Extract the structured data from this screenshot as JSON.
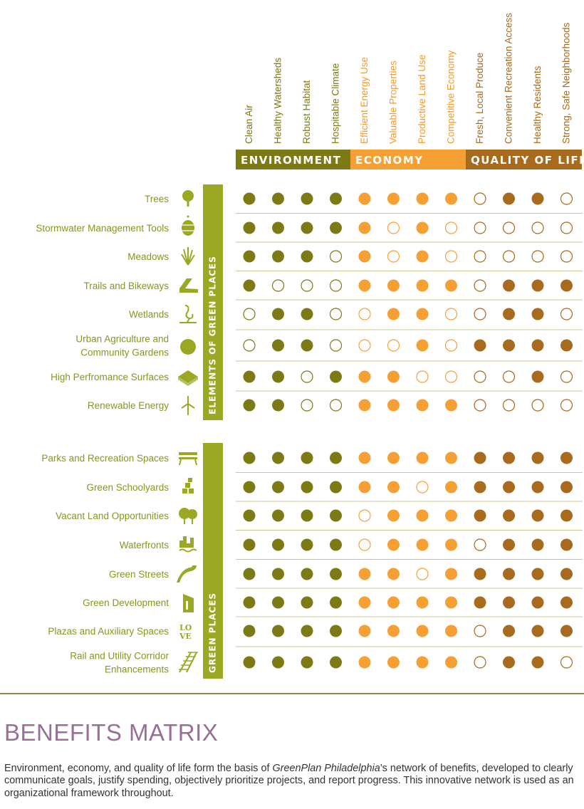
{
  "colors": {
    "environment": "#7b7a14",
    "economy": "#f6a033",
    "quality_of_life": "#a86a1c",
    "row_label": "#7f9a1e",
    "group_bar": "#9aa823",
    "divider": "#c7cb93",
    "title": "#9a6f95"
  },
  "chart_data": {
    "type": "table",
    "categories": [
      {
        "name": "ENVIRONMENT",
        "color": "#7b7a14",
        "columns": [
          "Clean Air",
          "Healthy Watersheds",
          "Robust Habitat",
          "Hospitable Climate"
        ]
      },
      {
        "name": "ECONOMY",
        "color": "#f6a033",
        "columns": [
          "Efficient Energy Use",
          "Valuable Properties",
          "Productive Land Use",
          "Competitive Economy"
        ]
      },
      {
        "name": "QUALITY OF LIFE",
        "color": "#a86a1c",
        "columns": [
          "Fresh, Local Produce",
          "Convenient Recreation Access",
          "Healthy Residents",
          "Strong, Safe Neighborhoods"
        ]
      }
    ],
    "groups": [
      {
        "name": "ELEMENTS OF GREEN PLACES",
        "rows": [
          {
            "label": [
              "Trees"
            ],
            "icon": "tree-icon",
            "values": [
              1,
              1,
              1,
              1,
              1,
              1,
              1,
              1,
              0,
              1,
              1,
              0
            ]
          },
          {
            "label": [
              "Stormwater Management Tools"
            ],
            "icon": "rain-barrel-icon",
            "values": [
              1,
              1,
              1,
              1,
              1,
              0,
              1,
              0,
              0,
              0,
              0,
              0
            ]
          },
          {
            "label": [
              "Meadows"
            ],
            "icon": "grass-icon",
            "values": [
              1,
              1,
              1,
              0,
              1,
              0,
              1,
              0,
              0,
              0,
              0,
              0
            ]
          },
          {
            "label": [
              "Trails and Bikeways"
            ],
            "icon": "trail-icon",
            "values": [
              1,
              0,
              0,
              0,
              1,
              1,
              1,
              1,
              0,
              1,
              1,
              1
            ]
          },
          {
            "label": [
              "Wetlands"
            ],
            "icon": "heron-icon",
            "values": [
              0,
              1,
              1,
              0,
              0,
              1,
              1,
              0,
              0,
              1,
              1,
              0
            ]
          },
          {
            "label": [
              "Urban Agriculture and",
              "Community Gardens"
            ],
            "icon": "tomato-icon",
            "values": [
              0,
              1,
              1,
              0,
              0,
              0,
              1,
              0,
              1,
              1,
              1,
              1
            ]
          },
          {
            "label": [
              "High Perfromance Surfaces"
            ],
            "icon": "paving-icon",
            "values": [
              1,
              1,
              0,
              1,
              1,
              1,
              0,
              0,
              0,
              0,
              1,
              0
            ]
          },
          {
            "label": [
              "Renewable Energy"
            ],
            "icon": "wind-turbine-icon",
            "values": [
              1,
              1,
              0,
              0,
              1,
              1,
              1,
              1,
              0,
              0,
              0,
              0
            ]
          }
        ]
      },
      {
        "name": "GREEN PLACES",
        "rows": [
          {
            "label": [
              "Parks and Recreation Spaces"
            ],
            "icon": "bench-icon",
            "values": [
              1,
              1,
              1,
              1,
              1,
              1,
              1,
              1,
              1,
              1,
              1,
              1
            ]
          },
          {
            "label": [
              "Green Schoolyards"
            ],
            "icon": "blocks-icon",
            "values": [
              1,
              1,
              1,
              1,
              1,
              1,
              0,
              1,
              1,
              1,
              1,
              1
            ]
          },
          {
            "label": [
              "Vacant Land Opportunities"
            ],
            "icon": "trees-icon",
            "values": [
              1,
              1,
              1,
              1,
              0,
              1,
              1,
              1,
              1,
              1,
              1,
              1
            ]
          },
          {
            "label": [
              "Waterfronts"
            ],
            "icon": "waterfront-icon",
            "values": [
              1,
              1,
              1,
              1,
              0,
              1,
              1,
              1,
              0,
              1,
              1,
              1
            ]
          },
          {
            "label": [
              "Green Streets"
            ],
            "icon": "road-icon",
            "values": [
              1,
              1,
              1,
              1,
              1,
              1,
              0,
              1,
              1,
              1,
              1,
              1
            ]
          },
          {
            "label": [
              "Green Development"
            ],
            "icon": "building-icon",
            "values": [
              1,
              1,
              1,
              1,
              1,
              1,
              1,
              1,
              1,
              1,
              1,
              1
            ]
          },
          {
            "label": [
              "Plazas and Auxiliary Spaces"
            ],
            "icon": "love-sculpture-icon",
            "values": [
              1,
              1,
              1,
              1,
              1,
              1,
              1,
              1,
              0,
              1,
              1,
              1
            ]
          },
          {
            "label": [
              "Rail and Utility Corridor",
              "Enhancements"
            ],
            "icon": "rail-track-icon",
            "values": [
              1,
              1,
              1,
              1,
              1,
              1,
              1,
              1,
              0,
              1,
              1,
              0
            ]
          }
        ]
      }
    ]
  },
  "footer": {
    "title": "BENEFITS MATRIX",
    "caption_before": "Environment, economy, and quality of life form the basis of ",
    "caption_emphasis": "GreenPlan Philadelphia",
    "caption_after": "’s network of benefits, developed to clearly communicate goals, justify spending, objectively prioritize projects, and report progress. This innovative network is used as an organizational framework throughout."
  }
}
